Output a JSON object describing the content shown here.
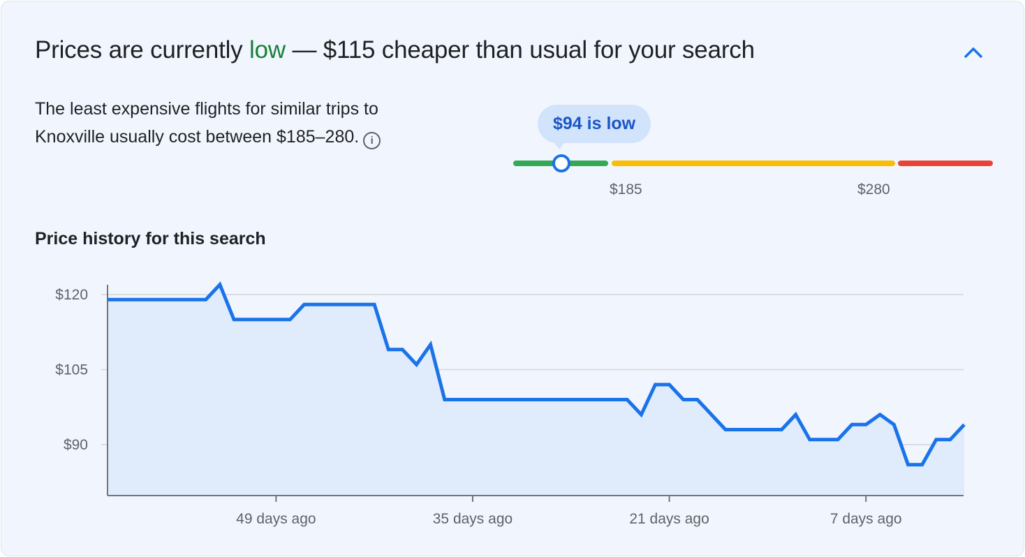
{
  "header": {
    "title_prefix": "Prices are currently ",
    "title_level": "low",
    "title_suffix": " — $115 cheaper than usual for your search",
    "collapse_icon": "chevron-up-icon"
  },
  "summary": {
    "text": "The least expensive flights for similar trips to Knoxville usually cost between $185–280.",
    "info_icon": "info-icon"
  },
  "gauge": {
    "bubble": "$94 is low",
    "current_price": 94,
    "low_threshold_label": "$185",
    "high_threshold_label": "$280",
    "colors": {
      "low": "#34a853",
      "typical": "#fbbc04",
      "high": "#ea4335",
      "marker": "#1a73e8"
    }
  },
  "section_title": "Price history for this search",
  "chart_data": {
    "type": "area",
    "title": "",
    "xlabel": "",
    "ylabel": "",
    "x_unit": "days ago",
    "ylim": [
      82,
      124
    ],
    "yticks": [
      120,
      105,
      90
    ],
    "ytick_labels": [
      "$120",
      "$105",
      "$90"
    ],
    "xticks": [
      49,
      35,
      21,
      7
    ],
    "xtick_labels": [
      "49 days ago",
      "35 days ago",
      "21 days ago",
      "7 days ago"
    ],
    "xlim": [
      61,
      0
    ],
    "grid": true,
    "line_color": "#1a73e8",
    "fill_color": "#e0ecfc",
    "x": [
      61,
      54,
      53,
      52,
      48,
      47,
      42,
      41,
      40,
      39,
      38,
      37,
      24,
      23,
      22,
      21,
      20,
      19,
      18,
      17,
      13,
      12,
      11,
      9,
      8,
      7,
      6,
      5,
      4,
      3,
      2,
      1,
      0
    ],
    "values": [
      119,
      119,
      122,
      115,
      115,
      118,
      118,
      109,
      109,
      106,
      110,
      99,
      99,
      96,
      102,
      102,
      99,
      99,
      96,
      93,
      93,
      96,
      91,
      91,
      94,
      94,
      96,
      94,
      86,
      86,
      91,
      91,
      94
    ]
  }
}
